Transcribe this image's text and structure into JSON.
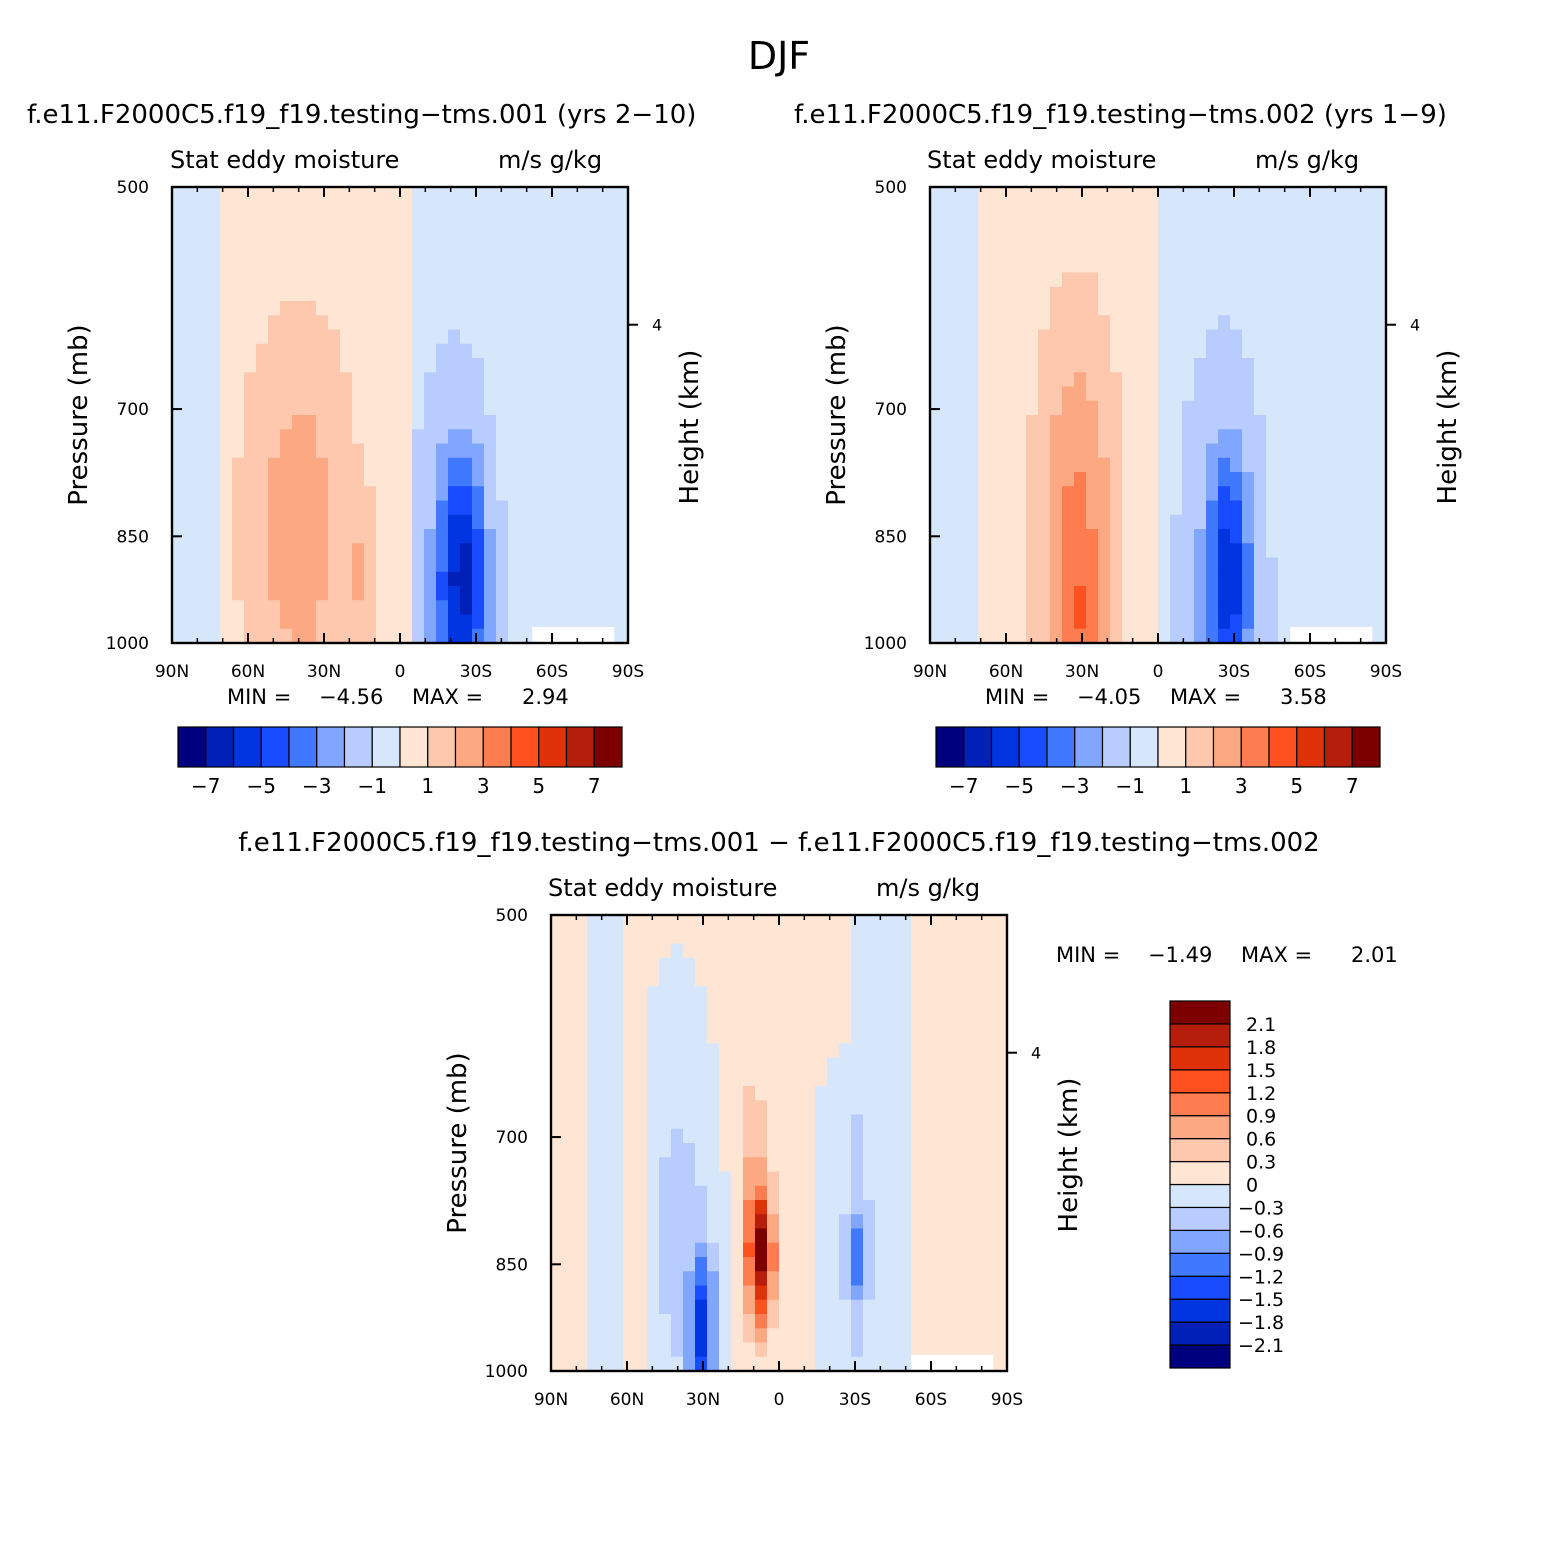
{
  "figure": {
    "title": "DJF",
    "subtitle": "Stat eddy moisture",
    "units": "m/s g/kg"
  },
  "chart_data": [
    {
      "type": "contour",
      "title": "f.e11.F2000C5.f19_f19.testing−tms.001 (yrs 2−10)",
      "subtitle": "Stat eddy moisture",
      "units": "m/s g/kg",
      "xlabel": "",
      "ylabel": "Pressure (mb)",
      "ylabel_right": "Height (km)",
      "x_ticks": [
        "90N",
        "60N",
        "30N",
        "0",
        "30S",
        "60S",
        "90S"
      ],
      "y_ticks": [
        500,
        700,
        850,
        1000
      ],
      "ylim": [
        1000,
        500
      ],
      "right_ticks": [
        4
      ],
      "min_label": "MIN =",
      "min_value": "−4.56",
      "max_label": "MAX =",
      "max_value": "2.94",
      "levels": [
        -7,
        -6,
        -5,
        -4,
        -3,
        -2,
        -1,
        0,
        1,
        2,
        3,
        4,
        5,
        6,
        7
      ],
      "colorbar_labels": [
        "−7",
        "−5",
        "−3",
        "−1",
        "1",
        "3",
        "5",
        "7"
      ]
    },
    {
      "type": "contour",
      "title": "f.e11.F2000C5.f19_f19.testing−tms.002 (yrs 1−9)",
      "subtitle": "Stat eddy moisture",
      "units": "m/s g/kg",
      "xlabel": "",
      "ylabel": "Pressure (mb)",
      "ylabel_right": "Height (km)",
      "x_ticks": [
        "90N",
        "60N",
        "30N",
        "0",
        "30S",
        "60S",
        "90S"
      ],
      "y_ticks": [
        500,
        700,
        850,
        1000
      ],
      "ylim": [
        1000,
        500
      ],
      "right_ticks": [
        4
      ],
      "min_label": "MIN =",
      "min_value": "−4.05",
      "max_label": "MAX =",
      "max_value": "3.58",
      "levels": [
        -7,
        -6,
        -5,
        -4,
        -3,
        -2,
        -1,
        0,
        1,
        2,
        3,
        4,
        5,
        6,
        7
      ],
      "colorbar_labels": [
        "−7",
        "−5",
        "−3",
        "−1",
        "1",
        "3",
        "5",
        "7"
      ]
    },
    {
      "type": "contour",
      "title": "f.e11.F2000C5.f19_f19.testing−tms.001 − f.e11.F2000C5.f19_f19.testing−tms.002",
      "subtitle": "Stat eddy moisture",
      "units": "m/s g/kg",
      "xlabel": "",
      "ylabel": "Pressure (mb)",
      "ylabel_right": "Height (km)",
      "x_ticks": [
        "90N",
        "60N",
        "30N",
        "0",
        "30S",
        "60S",
        "90S"
      ],
      "y_ticks": [
        500,
        700,
        850,
        1000
      ],
      "ylim": [
        1000,
        500
      ],
      "right_ticks": [
        4
      ],
      "min_label": "MIN =",
      "min_value": "−1.49",
      "max_label": "MAX =",
      "max_value": "2.01",
      "levels": [
        -2.1,
        -1.8,
        -1.5,
        -1.2,
        -0.9,
        -0.6,
        -0.3,
        0,
        0.3,
        0.6,
        0.9,
        1.2,
        1.5,
        1.8,
        2.1
      ],
      "colorbar_labels": [
        "−2.1",
        "−1.8",
        "−1.5",
        "−1.2",
        "−0.9",
        "−0.6",
        "−0.3",
        "0",
        "0.3",
        "0.6",
        "0.9",
        "1.2",
        "1.5",
        "1.8",
        "2.1"
      ]
    }
  ],
  "colors": {
    "palette": [
      "#00007f",
      "#0020b8",
      "#0035e0",
      "#1a4cff",
      "#4078ff",
      "#80a6ff",
      "#b8ccff",
      "#d6e6fb",
      "#ffe6d4",
      "#fdc8ad",
      "#fca883",
      "#fe7d50",
      "#ff5020",
      "#e03208",
      "#b41e0a",
      "#7d0000"
    ]
  }
}
